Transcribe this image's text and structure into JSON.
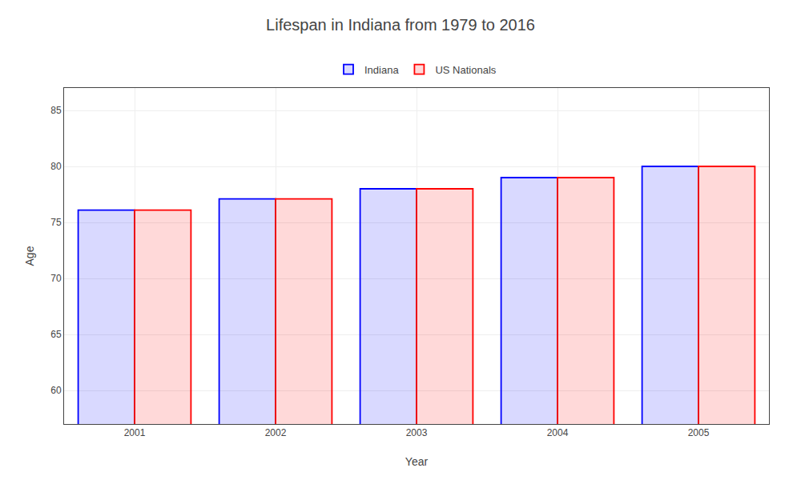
{
  "chart_data": {
    "type": "bar",
    "title": "Lifespan in Indiana from 1979 to 2016",
    "xlabel": "Year",
    "ylabel": "Age",
    "categories": [
      "2001",
      "2002",
      "2003",
      "2004",
      "2005"
    ],
    "series": [
      {
        "name": "Indiana",
        "color": "#0000ff",
        "values": [
          76.1,
          77.1,
          78.0,
          79.0,
          80.0
        ]
      },
      {
        "name": "US Nationals",
        "color": "#ff0000",
        "values": [
          76.1,
          77.1,
          78.0,
          79.0,
          80.0
        ]
      }
    ],
    "ylim": [
      57,
      87
    ],
    "yticks": [
      60,
      65,
      70,
      75,
      80,
      85
    ],
    "grid": true,
    "legend": "top"
  }
}
